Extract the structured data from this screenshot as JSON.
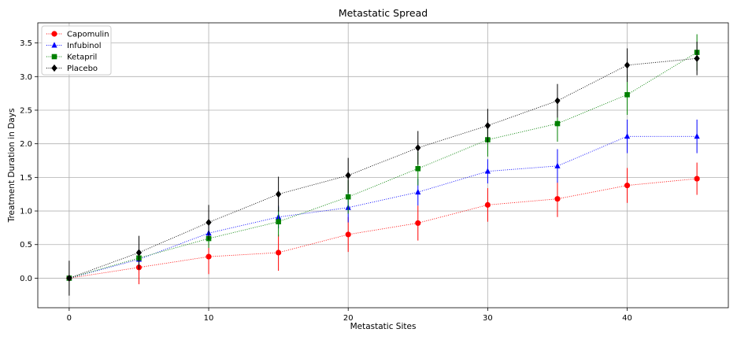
{
  "chart_data": {
    "type": "line",
    "title": "Metastatic Spread",
    "xlabel": "Metastatic Sites",
    "ylabel": "Treatment Duration in Days",
    "xlim": [
      -2.25,
      47.25
    ],
    "ylim": [
      -0.44,
      3.8
    ],
    "xticks": [
      0,
      10,
      20,
      30,
      40
    ],
    "xtick_labels": [
      "0",
      "10",
      "20",
      "30",
      "40"
    ],
    "yticks": [
      0.0,
      0.5,
      1.0,
      1.5,
      2.0,
      2.5,
      3.0,
      3.5
    ],
    "ytick_labels": [
      "0.0",
      "0.5",
      "1.0",
      "1.5",
      "2.0",
      "2.5",
      "3.0",
      "3.5"
    ],
    "grid": true,
    "legend_position": "top-left",
    "x": [
      0,
      5,
      10,
      15,
      20,
      25,
      30,
      35,
      40,
      45
    ],
    "series": [
      {
        "name": "Capomulin",
        "color": "#ff0000",
        "marker": "circle",
        "values": [
          0.0,
          0.16,
          0.32,
          0.38,
          0.65,
          0.82,
          1.09,
          1.18,
          1.38,
          1.48
        ],
        "errors": [
          0.0,
          0.25,
          0.26,
          0.27,
          0.26,
          0.26,
          0.25,
          0.27,
          0.26,
          0.24
        ]
      },
      {
        "name": "Infubinol",
        "color": "#0000ff",
        "marker": "triangle",
        "values": [
          0.0,
          0.28,
          0.67,
          0.91,
          1.05,
          1.28,
          1.59,
          1.67,
          2.11,
          2.11
        ],
        "errors": [
          0.0,
          0.12,
          0.15,
          0.17,
          0.22,
          0.2,
          0.18,
          0.25,
          0.25,
          0.25
        ]
      },
      {
        "name": "Ketapril",
        "color": "#008000",
        "marker": "square",
        "values": [
          0.0,
          0.3,
          0.59,
          0.84,
          1.21,
          1.63,
          2.06,
          2.3,
          2.73,
          3.36
        ],
        "errors": [
          0.0,
          0.1,
          0.14,
          0.22,
          0.25,
          0.25,
          0.25,
          0.27,
          0.3,
          0.27
        ]
      },
      {
        "name": "Placebo",
        "color": "#000000",
        "marker": "diamond",
        "values": [
          0.0,
          0.38,
          0.83,
          1.25,
          1.53,
          1.94,
          2.27,
          2.64,
          3.17,
          3.27
        ],
        "errors": [
          0.26,
          0.25,
          0.26,
          0.26,
          0.26,
          0.25,
          0.25,
          0.25,
          0.25,
          0.25
        ]
      }
    ]
  }
}
